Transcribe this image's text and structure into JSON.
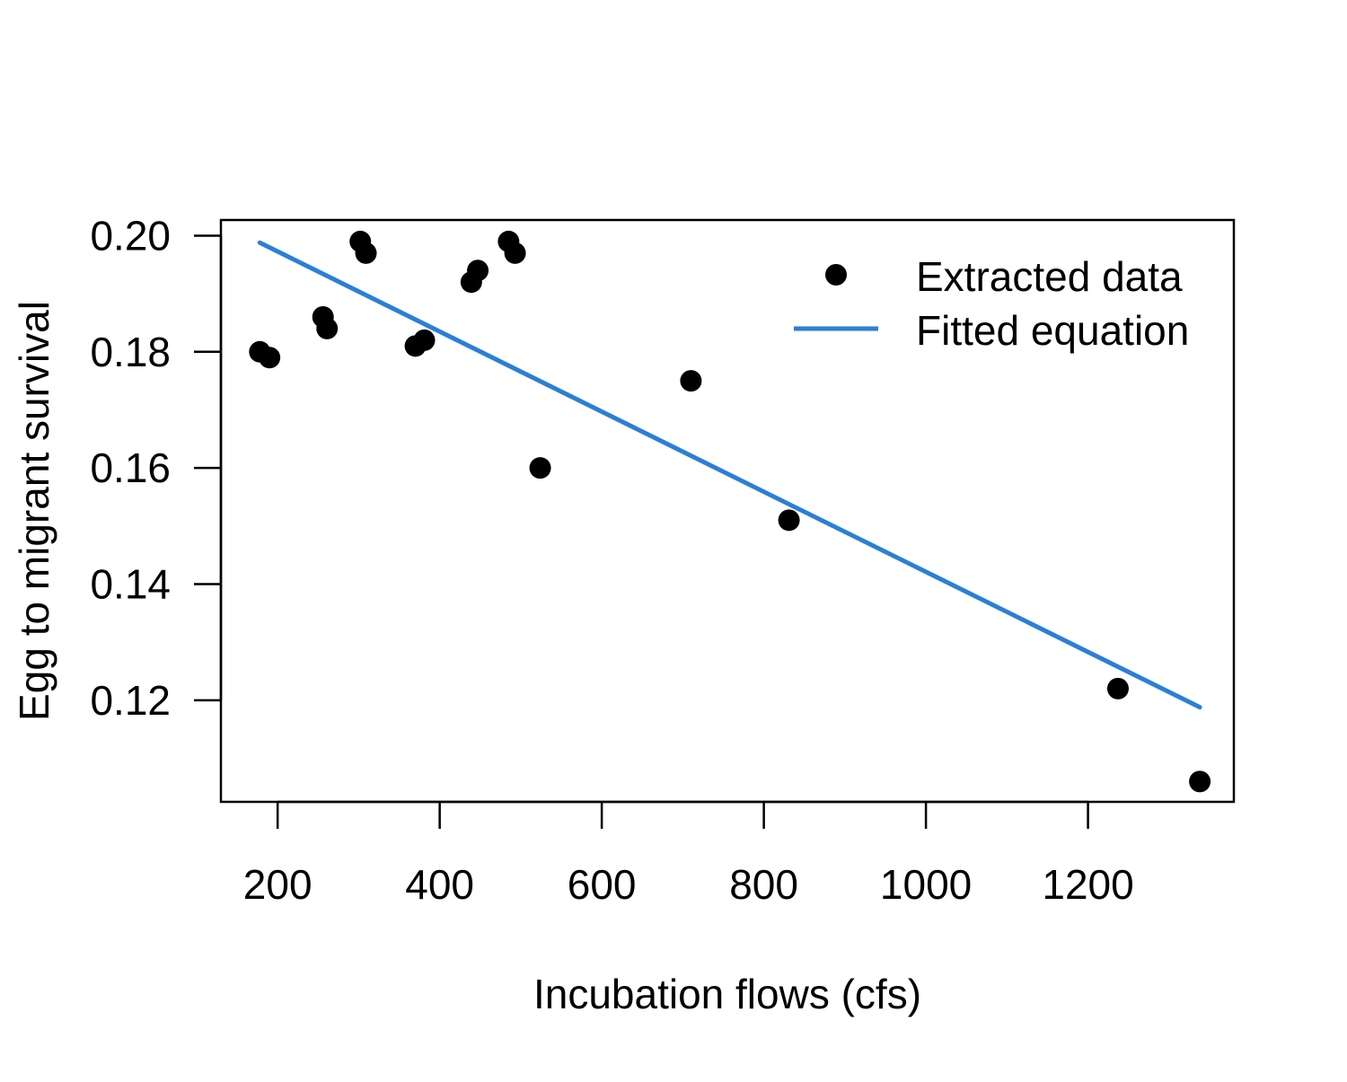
{
  "chart_data": {
    "type": "scatter",
    "title": "",
    "xlabel": "Incubation flows (cfs)",
    "ylabel": "Egg to migrant survival",
    "xlim": [
      130,
      1380
    ],
    "ylim": [
      0.1025,
      0.2027
    ],
    "x_ticks": [
      200,
      400,
      600,
      800,
      1000,
      1200
    ],
    "y_ticks": [
      0.12,
      0.14,
      0.16,
      0.18,
      0.2
    ],
    "x_tick_labels": [
      "200",
      "400",
      "600",
      "800",
      "1000",
      "1200"
    ],
    "y_tick_labels": [
      "0.12",
      "0.14",
      "0.16",
      "0.18",
      "0.20"
    ],
    "grid": false,
    "legend_position": "top-right",
    "legend": {
      "points_label": "Extracted data",
      "line_label": "Fitted equation"
    },
    "colors": {
      "points": "#000000",
      "line": "#2b7fd6",
      "axes": "#000000"
    },
    "series": [
      {
        "name": "Extracted data",
        "kind": "points",
        "x": [
          178,
          190,
          256,
          261,
          302,
          309,
          370,
          381,
          439,
          447,
          485,
          493,
          524,
          710,
          831,
          1237,
          1338
        ],
        "y": [
          0.18,
          0.179,
          0.186,
          0.184,
          0.199,
          0.197,
          0.181,
          0.182,
          0.192,
          0.194,
          0.199,
          0.197,
          0.16,
          0.175,
          0.151,
          0.122,
          0.106
        ]
      },
      {
        "name": "Fitted equation",
        "kind": "line",
        "x": [
          178,
          1338
        ],
        "y": [
          0.1988,
          0.1188
        ]
      }
    ]
  }
}
